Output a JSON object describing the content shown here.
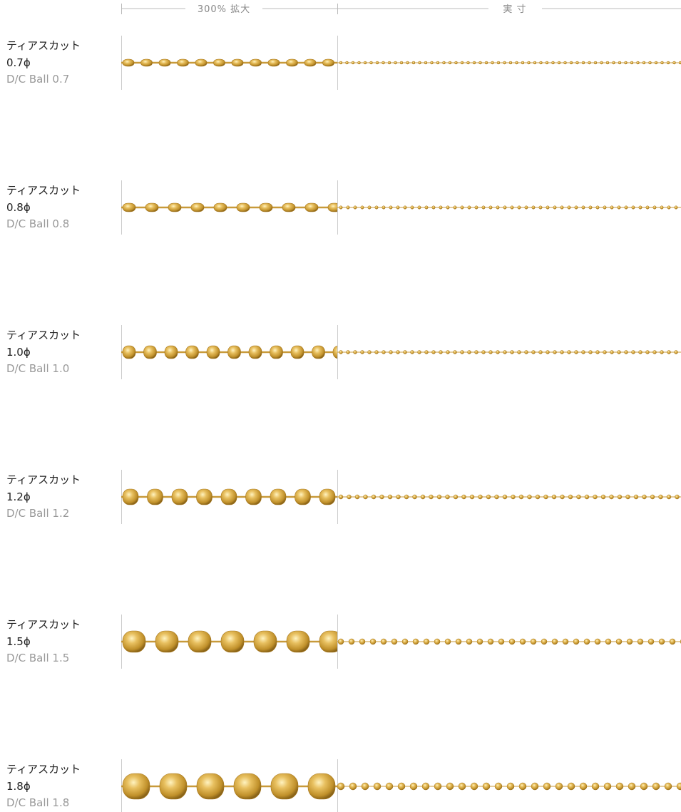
{
  "header": {
    "magnified": "300% 拡大",
    "actual": "実 寸"
  },
  "items": [
    {
      "name": "ティアスカット",
      "size": "0.7ϕ",
      "english": "D/C Ball 0.7"
    },
    {
      "name": "ティアスカット",
      "size": "0.8ϕ",
      "english": "D/C Ball 0.8"
    },
    {
      "name": "ティアスカット",
      "size": "1.0ϕ",
      "english": "D/C Ball 1.0"
    },
    {
      "name": "ティアスカット",
      "size": "1.2ϕ",
      "english": "D/C Ball 1.2"
    },
    {
      "name": "ティアスカット",
      "size": "1.5ϕ",
      "english": "D/C Ball 1.5"
    },
    {
      "name": "ティアスカット",
      "size": "1.8ϕ",
      "english": "D/C Ball 1.8"
    }
  ]
}
